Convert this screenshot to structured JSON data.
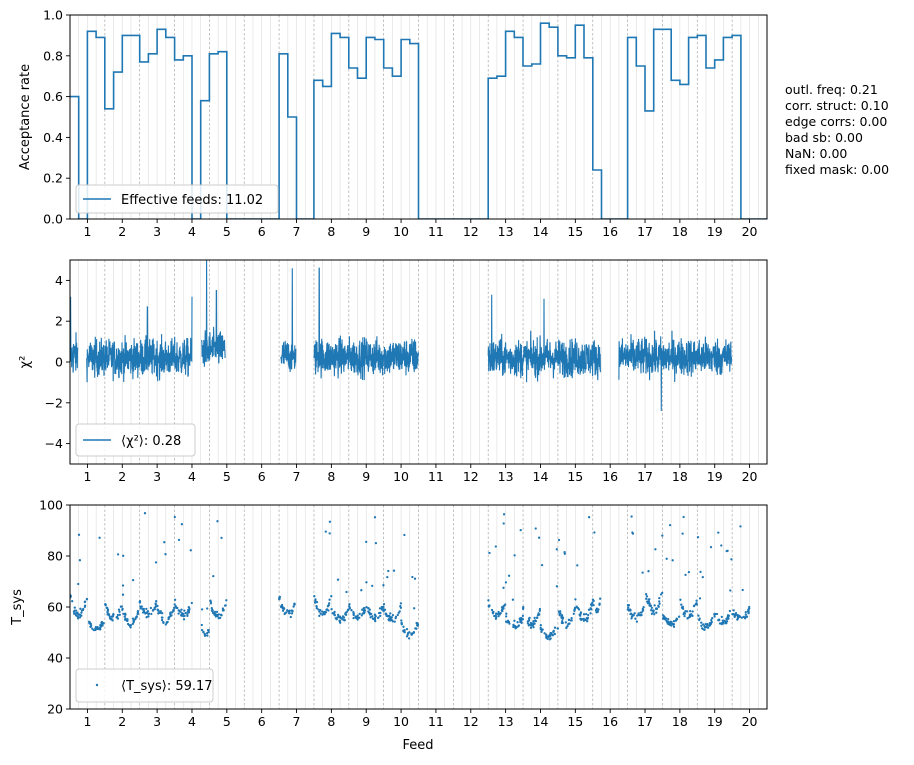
{
  "chart_data": [
    {
      "type": "step",
      "panel": "acceptance",
      "ylabel": "Acceptance rate",
      "xlabel": "",
      "xlim": [
        0.5,
        20.5
      ],
      "ylim": [
        0.0,
        1.0
      ],
      "yticks": [
        0.0,
        0.2,
        0.4,
        0.6,
        0.8,
        1.0
      ],
      "ytick_labels": [
        "0.0",
        "0.2",
        "0.4",
        "0.6",
        "0.8",
        "1.0"
      ],
      "xticks": [
        1,
        2,
        3,
        4,
        5,
        6,
        7,
        8,
        9,
        10,
        11,
        12,
        13,
        14,
        15,
        16,
        17,
        18,
        19,
        20
      ],
      "xtick_labels": [
        "1",
        "2",
        "3",
        "4",
        "5",
        "6",
        "7",
        "8",
        "9",
        "10",
        "11",
        "12",
        "13",
        "14",
        "15",
        "16",
        "17",
        "18",
        "19",
        "20"
      ],
      "legend": "Effective feeds: 11.02",
      "legend_loc": "lower-left",
      "color": "#1f77b4",
      "step_x": [
        0.5,
        0.75,
        1.0,
        1.25,
        1.5,
        1.75,
        2.0,
        2.25,
        2.5,
        2.75,
        3.0,
        3.25,
        3.5,
        3.75,
        4.0,
        4.25,
        4.5,
        4.75,
        5.0,
        5.25,
        5.5,
        5.75,
        6.0,
        6.25,
        6.5,
        6.75,
        7.0,
        7.25,
        7.5,
        7.75,
        8.0,
        8.25,
        8.5,
        8.75,
        9.0,
        9.25,
        9.5,
        9.75,
        10.0,
        10.25,
        10.5,
        10.75,
        11.0,
        11.25,
        11.5,
        11.75,
        12.0,
        12.25,
        12.5,
        12.75,
        13.0,
        13.25,
        13.5,
        13.75,
        14.0,
        14.25,
        14.5,
        14.75,
        15.0,
        15.25,
        15.5,
        15.75,
        16.0,
        16.25,
        16.5,
        16.75,
        17.0,
        17.25,
        17.5,
        17.75,
        18.0,
        18.25,
        18.5,
        18.75,
        19.0,
        19.25,
        19.5,
        19.75,
        20.0,
        20.25
      ],
      "step_y": [
        0.6,
        0.0,
        0.92,
        0.89,
        0.54,
        0.72,
        0.9,
        0.9,
        0.77,
        0.81,
        0.93,
        0.89,
        0.78,
        0.8,
        0.0,
        0.58,
        0.81,
        0.82,
        0.0,
        0.0,
        0.0,
        0.0,
        0.0,
        0.0,
        0.81,
        0.5,
        0.0,
        0.0,
        0.68,
        0.65,
        0.91,
        0.89,
        0.74,
        0.69,
        0.89,
        0.88,
        0.74,
        0.7,
        0.88,
        0.86,
        0.0,
        0.0,
        0.0,
        0.0,
        0.0,
        0.0,
        0.0,
        0.0,
        0.69,
        0.7,
        0.92,
        0.89,
        0.75,
        0.76,
        0.96,
        0.94,
        0.8,
        0.79,
        0.95,
        0.79,
        0.24,
        0.0,
        0.0,
        0.0,
        0.89,
        0.75,
        0.53,
        0.93,
        0.93,
        0.68,
        0.66,
        0.89,
        0.9,
        0.74,
        0.78,
        0.89,
        0.9,
        0.0,
        0.0,
        0.0
      ]
    },
    {
      "type": "line",
      "panel": "chi2",
      "ylabel": "χ²",
      "xlabel": "",
      "xlim": [
        0.5,
        20.5
      ],
      "ylim": [
        -5,
        5
      ],
      "yticks": [
        -4,
        -2,
        0,
        2,
        4
      ],
      "ytick_labels": [
        "−4",
        "−2",
        "0",
        "2",
        "4"
      ],
      "xticks": [
        1,
        2,
        3,
        4,
        5,
        6,
        7,
        8,
        9,
        10,
        11,
        12,
        13,
        14,
        15,
        16,
        17,
        18,
        19,
        20
      ],
      "xtick_labels": [
        "1",
        "2",
        "3",
        "4",
        "5",
        "6",
        "7",
        "8",
        "9",
        "10",
        "11",
        "12",
        "13",
        "14",
        "15",
        "16",
        "17",
        "18",
        "19",
        "20"
      ],
      "legend": "⟨χ²⟩: 0.28",
      "legend_loc": "lower-left",
      "color": "#1f77b4",
      "series": [
        {
          "x_range": [
            0.5,
            0.72
          ],
          "mean": 0.3,
          "spread": 1.0,
          "spikes": [
            [
              0.52,
              3.2
            ]
          ]
        },
        {
          "x_range": [
            0.98,
            4.0
          ],
          "mean": 0.2,
          "spread": 0.9,
          "spikes": [
            [
              2.72,
              2.7
            ],
            [
              4.0,
              3.2
            ]
          ]
        },
        {
          "x_range": [
            4.28,
            4.95
          ],
          "mean": 0.6,
          "spread": 0.9,
          "spikes": [
            [
              4.42,
              5.0
            ],
            [
              4.7,
              3.5
            ]
          ]
        },
        {
          "x_range": [
            6.55,
            6.98
          ],
          "mean": 0.3,
          "spread": 0.8,
          "spikes": [
            [
              6.88,
              4.6
            ]
          ]
        },
        {
          "x_range": [
            7.5,
            10.5
          ],
          "mean": 0.25,
          "spread": 0.9,
          "spikes": [
            [
              7.65,
              4.6
            ]
          ]
        },
        {
          "x_range": [
            12.5,
            15.72
          ],
          "mean": 0.2,
          "spread": 0.9,
          "spikes": [
            [
              12.6,
              3.3
            ],
            [
              14.1,
              3.1
            ]
          ]
        },
        {
          "x_range": [
            16.25,
            19.48
          ],
          "mean": 0.25,
          "spread": 0.9,
          "spikes": [
            [
              17.47,
              -2.4
            ]
          ]
        }
      ]
    },
    {
      "type": "scatter",
      "panel": "tsys",
      "ylabel": "T_sys",
      "xlabel": "Feed",
      "xlim": [
        0.5,
        20.5
      ],
      "ylim": [
        20,
        100
      ],
      "yticks": [
        20,
        40,
        60,
        80,
        100
      ],
      "ytick_labels": [
        "20",
        "40",
        "60",
        "80",
        "100"
      ],
      "xticks": [
        1,
        2,
        3,
        4,
        5,
        6,
        7,
        8,
        9,
        10,
        11,
        12,
        13,
        14,
        15,
        16,
        17,
        18,
        19,
        20
      ],
      "xtick_labels": [
        "1",
        "2",
        "3",
        "4",
        "5",
        "6",
        "7",
        "8",
        "9",
        "10",
        "11",
        "12",
        "13",
        "14",
        "15",
        "16",
        "17",
        "18",
        "19",
        "20"
      ],
      "legend": "⟨T_sys⟩: 59.17",
      "legend_loc": "lower-left",
      "color": "#1f77b4",
      "series": [
        {
          "x_range": [
            0.5,
            1.0
          ],
          "mean": 60,
          "u_depth": 8
        },
        {
          "x_range": [
            1.0,
            1.5
          ],
          "mean": 53,
          "u_depth": 5
        },
        {
          "x_range": [
            1.5,
            2.0
          ],
          "mean": 58,
          "u_depth": 5
        },
        {
          "x_range": [
            2.0,
            2.5
          ],
          "mean": 56,
          "u_depth": 6
        },
        {
          "x_range": [
            2.5,
            3.0
          ],
          "mean": 59,
          "u_depth": 5
        },
        {
          "x_range": [
            3.0,
            3.5
          ],
          "mean": 57,
          "u_depth": 5
        },
        {
          "x_range": [
            3.5,
            4.0
          ],
          "mean": 59,
          "u_depth": 6
        },
        {
          "x_range": [
            4.28,
            4.5
          ],
          "mean": 50,
          "u_depth": 3
        },
        {
          "x_range": [
            4.5,
            5.0
          ],
          "mean": 59,
          "u_depth": 6
        },
        {
          "x_range": [
            6.5,
            7.0
          ],
          "mean": 60,
          "u_depth": 6
        },
        {
          "x_range": [
            7.5,
            8.0
          ],
          "mean": 60,
          "u_depth": 6
        },
        {
          "x_range": [
            8.0,
            8.5
          ],
          "mean": 57,
          "u_depth": 5
        },
        {
          "x_range": [
            8.5,
            9.0
          ],
          "mean": 58,
          "u_depth": 5
        },
        {
          "x_range": [
            9.0,
            9.5
          ],
          "mean": 58,
          "u_depth": 5
        },
        {
          "x_range": [
            9.5,
            10.0
          ],
          "mean": 57,
          "u_depth": 5
        },
        {
          "x_range": [
            10.0,
            10.5
          ],
          "mean": 51,
          "u_depth": 5
        },
        {
          "x_range": [
            12.5,
            13.0
          ],
          "mean": 59,
          "u_depth": 6
        },
        {
          "x_range": [
            13.0,
            13.5
          ],
          "mean": 54,
          "u_depth": 4
        },
        {
          "x_range": [
            13.5,
            14.0
          ],
          "mean": 56,
          "u_depth": 6
        },
        {
          "x_range": [
            14.0,
            14.5
          ],
          "mean": 50,
          "u_depth": 4
        },
        {
          "x_range": [
            14.5,
            15.0
          ],
          "mean": 56,
          "u_depth": 6
        },
        {
          "x_range": [
            15.0,
            15.5
          ],
          "mean": 58,
          "u_depth": 6
        },
        {
          "x_range": [
            15.5,
            15.72
          ],
          "mean": 60,
          "u_depth": 4
        },
        {
          "x_range": [
            16.5,
            17.0
          ],
          "mean": 58,
          "u_depth": 5
        },
        {
          "x_range": [
            17.0,
            17.5
          ],
          "mean": 62,
          "u_depth": 8
        },
        {
          "x_range": [
            17.5,
            18.0
          ],
          "mean": 55,
          "u_depth": 4
        },
        {
          "x_range": [
            18.0,
            18.5
          ],
          "mean": 59,
          "u_depth": 6
        },
        {
          "x_range": [
            18.5,
            19.0
          ],
          "mean": 54,
          "u_depth": 5
        },
        {
          "x_range": [
            19.0,
            19.5
          ],
          "mean": 56,
          "u_depth": 5
        },
        {
          "x_range": [
            19.5,
            20.0
          ],
          "mean": 57,
          "u_depth": 3
        }
      ]
    }
  ],
  "side_stats": [
    "outl. freq: 0.21",
    "corr. struct: 0.10",
    "edge corrs: 0.00",
    "bad sb: 0.00",
    "NaN: 0.00",
    "fixed mask: 0.00"
  ]
}
